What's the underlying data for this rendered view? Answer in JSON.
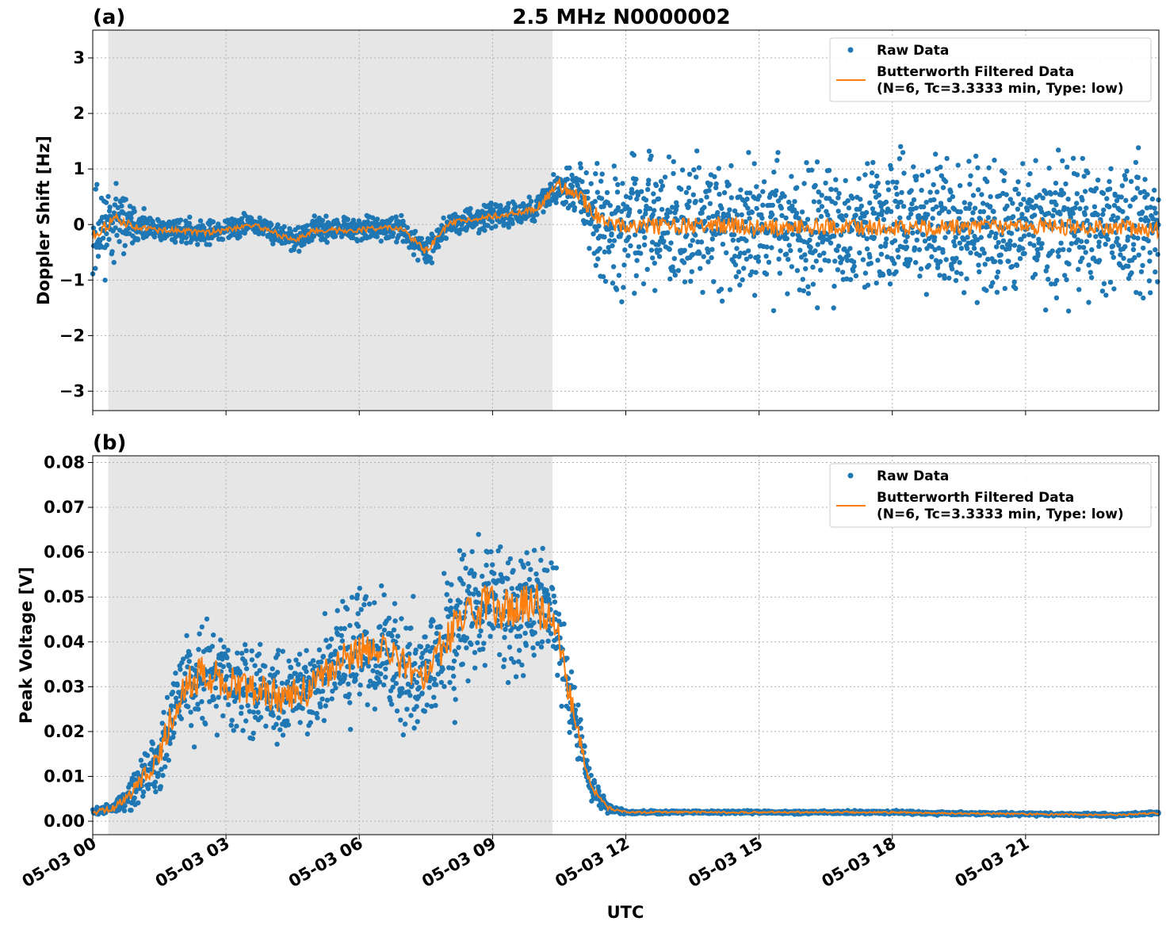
{
  "figure": {
    "title": "2.5 MHz N0000002",
    "xlabel": "UTC",
    "x_ticks": [
      "05-03 00",
      "05-03 03",
      "05-03 06",
      "05-03 09",
      "05-03 12",
      "05-03 15",
      "05-03 18",
      "05-03 21"
    ],
    "shaded_region_hours": [
      0.35,
      10.35
    ],
    "colors": {
      "raw": "#1f77b4",
      "filtered": "#ff7f0e",
      "shade": "#e6e6e6",
      "grid": "#b0b0b0"
    },
    "legend": {
      "raw": "Raw Data",
      "filtered_line1": "Butterworth Filtered Data",
      "filtered_line2": "(N=6, Tc=3.3333 min, Type: low)"
    }
  },
  "chart_data": [
    {
      "type": "scatter",
      "panel_label": "(a)",
      "ylabel": "Doppler Shift [Hz]",
      "x_unit": "hours UTC on 05-03",
      "xlim": [
        0,
        24
      ],
      "ylim": [
        -3.35,
        3.5
      ],
      "y_ticks": [
        3,
        2,
        1,
        0,
        -1,
        -2,
        -3
      ],
      "y_tick_labels": [
        "3",
        "2",
        "1",
        "0",
        "−1",
        "−2",
        "−3"
      ],
      "grid": true,
      "legend_position": "top-right",
      "series": [
        {
          "name": "Raw Data",
          "kind": "points",
          "x": [
            0,
            0.5,
            1,
            1.5,
            2,
            2.5,
            3,
            3.5,
            4,
            4.5,
            5,
            5.5,
            6,
            6.5,
            7,
            7.5,
            8,
            8.5,
            9,
            9.5,
            10,
            10.5,
            11,
            11.5,
            12,
            13,
            14,
            15,
            16,
            17,
            18,
            19,
            20,
            21,
            22,
            23,
            24
          ],
          "mean": [
            -0.2,
            0.1,
            -0.05,
            -0.1,
            -0.1,
            -0.15,
            -0.1,
            0.0,
            -0.1,
            -0.3,
            -0.1,
            -0.1,
            -0.1,
            -0.05,
            -0.1,
            -0.5,
            0.0,
            0.1,
            0.15,
            0.2,
            0.3,
            0.7,
            0.5,
            0.0,
            0.0,
            -0.05,
            0.0,
            -0.05,
            -0.05,
            -0.05,
            -0.05,
            -0.05,
            -0.05,
            -0.05,
            -0.05,
            -0.05,
            -0.1
          ],
          "spread": [
            1.3,
            0.9,
            0.4,
            0.3,
            0.3,
            0.3,
            0.3,
            0.3,
            0.3,
            0.3,
            0.3,
            0.3,
            0.3,
            0.3,
            0.3,
            0.4,
            0.3,
            0.3,
            0.3,
            0.3,
            0.3,
            0.5,
            0.8,
            1.6,
            1.7,
            1.7,
            1.7,
            1.7,
            1.7,
            1.7,
            1.7,
            1.7,
            1.7,
            1.7,
            1.7,
            1.7,
            1.6
          ]
        },
        {
          "name": "Butterworth Filtered Data (N=6, Tc=3.3333 min, Type: low)",
          "kind": "line",
          "x": [
            0,
            0.5,
            1,
            1.5,
            2,
            2.5,
            3,
            3.5,
            4,
            4.5,
            5,
            5.5,
            6,
            6.5,
            7,
            7.5,
            8,
            8.5,
            9,
            9.5,
            10,
            10.5,
            11,
            11.5,
            12,
            13,
            14,
            15,
            16,
            17,
            18,
            19,
            20,
            21,
            22,
            23,
            24
          ],
          "y": [
            -0.2,
            0.1,
            -0.05,
            -0.1,
            -0.1,
            -0.15,
            -0.1,
            0.0,
            -0.1,
            -0.3,
            -0.1,
            -0.1,
            -0.1,
            -0.05,
            -0.1,
            -0.5,
            0.0,
            0.1,
            0.15,
            0.2,
            0.3,
            0.7,
            0.5,
            0.0,
            0.0,
            -0.05,
            0.0,
            -0.05,
            -0.05,
            -0.05,
            -0.05,
            -0.05,
            -0.05,
            -0.05,
            -0.05,
            -0.05,
            -0.1
          ],
          "noise": [
            0.1,
            0.1,
            0.05,
            0.05,
            0.05,
            0.05,
            0.05,
            0.05,
            0.05,
            0.05,
            0.05,
            0.05,
            0.05,
            0.05,
            0.05,
            0.08,
            0.05,
            0.05,
            0.05,
            0.05,
            0.08,
            0.12,
            0.15,
            0.15,
            0.15,
            0.15,
            0.15,
            0.15,
            0.15,
            0.15,
            0.15,
            0.15,
            0.15,
            0.15,
            0.15,
            0.15,
            0.15
          ]
        }
      ]
    },
    {
      "type": "scatter",
      "panel_label": "(b)",
      "ylabel": "Peak Voltage [V]",
      "x_unit": "hours UTC on 05-03",
      "xlim": [
        0,
        24
      ],
      "ylim": [
        -0.003,
        0.0815
      ],
      "y_ticks": [
        0.08,
        0.07,
        0.06,
        0.05,
        0.04,
        0.03,
        0.02,
        0.01,
        0.0
      ],
      "y_tick_labels": [
        "0.08",
        "0.07",
        "0.06",
        "0.05",
        "0.04",
        "0.03",
        "0.02",
        "0.01",
        "0.00"
      ],
      "grid": true,
      "legend_position": "top-right",
      "series": [
        {
          "name": "Raw Data",
          "kind": "points",
          "x": [
            0,
            0.5,
            1,
            1.5,
            2,
            2.5,
            3,
            3.5,
            4,
            4.5,
            5,
            5.5,
            6,
            6.5,
            7,
            7.5,
            8,
            8.5,
            9,
            9.5,
            10,
            10.4,
            10.8,
            11.2,
            11.6,
            12,
            13,
            14,
            15,
            16,
            17,
            18,
            19,
            20,
            21,
            22,
            23,
            24
          ],
          "mean": [
            0.002,
            0.003,
            0.008,
            0.015,
            0.03,
            0.033,
            0.031,
            0.03,
            0.028,
            0.028,
            0.03,
            0.035,
            0.038,
            0.038,
            0.035,
            0.032,
            0.042,
            0.047,
            0.048,
            0.047,
            0.048,
            0.045,
            0.025,
            0.008,
            0.003,
            0.002,
            0.002,
            0.002,
            0.002,
            0.002,
            0.002,
            0.002,
            0.0018,
            0.0017,
            0.0016,
            0.0015,
            0.0014,
            0.0018
          ],
          "spread": [
            0.001,
            0.002,
            0.006,
            0.01,
            0.015,
            0.016,
            0.015,
            0.015,
            0.014,
            0.014,
            0.016,
            0.018,
            0.02,
            0.02,
            0.018,
            0.018,
            0.022,
            0.023,
            0.022,
            0.022,
            0.02,
            0.02,
            0.012,
            0.004,
            0.0015,
            0.0006,
            0.0005,
            0.0005,
            0.0005,
            0.0005,
            0.0005,
            0.0005,
            0.0005,
            0.0005,
            0.0005,
            0.0005,
            0.0005,
            0.0005
          ]
        },
        {
          "name": "Butterworth Filtered Data (N=6, Tc=3.3333 min, Type: low)",
          "kind": "line",
          "x": [
            0,
            0.5,
            1,
            1.5,
            2,
            2.5,
            3,
            3.5,
            4,
            4.5,
            5,
            5.5,
            6,
            6.5,
            7,
            7.5,
            8,
            8.5,
            9,
            9.5,
            10,
            10.4,
            10.8,
            11.2,
            11.6,
            12,
            13,
            14,
            15,
            16,
            17,
            18,
            19,
            20,
            21,
            22,
            23,
            24
          ],
          "y": [
            0.002,
            0.003,
            0.008,
            0.015,
            0.03,
            0.033,
            0.031,
            0.03,
            0.028,
            0.028,
            0.03,
            0.035,
            0.038,
            0.038,
            0.035,
            0.032,
            0.042,
            0.047,
            0.048,
            0.047,
            0.048,
            0.045,
            0.025,
            0.008,
            0.003,
            0.002,
            0.002,
            0.002,
            0.002,
            0.002,
            0.002,
            0.002,
            0.0018,
            0.0017,
            0.0016,
            0.0015,
            0.0014,
            0.0018
          ],
          "noise": [
            0.0005,
            0.001,
            0.002,
            0.003,
            0.004,
            0.004,
            0.004,
            0.004,
            0.004,
            0.004,
            0.004,
            0.004,
            0.004,
            0.004,
            0.004,
            0.004,
            0.005,
            0.005,
            0.005,
            0.005,
            0.005,
            0.004,
            0.003,
            0.001,
            0.0004,
            0.0002,
            0.0002,
            0.0002,
            0.0002,
            0.0002,
            0.0002,
            0.0002,
            0.0002,
            0.0002,
            0.0002,
            0.0002,
            0.0002,
            0.0002
          ]
        }
      ]
    }
  ]
}
